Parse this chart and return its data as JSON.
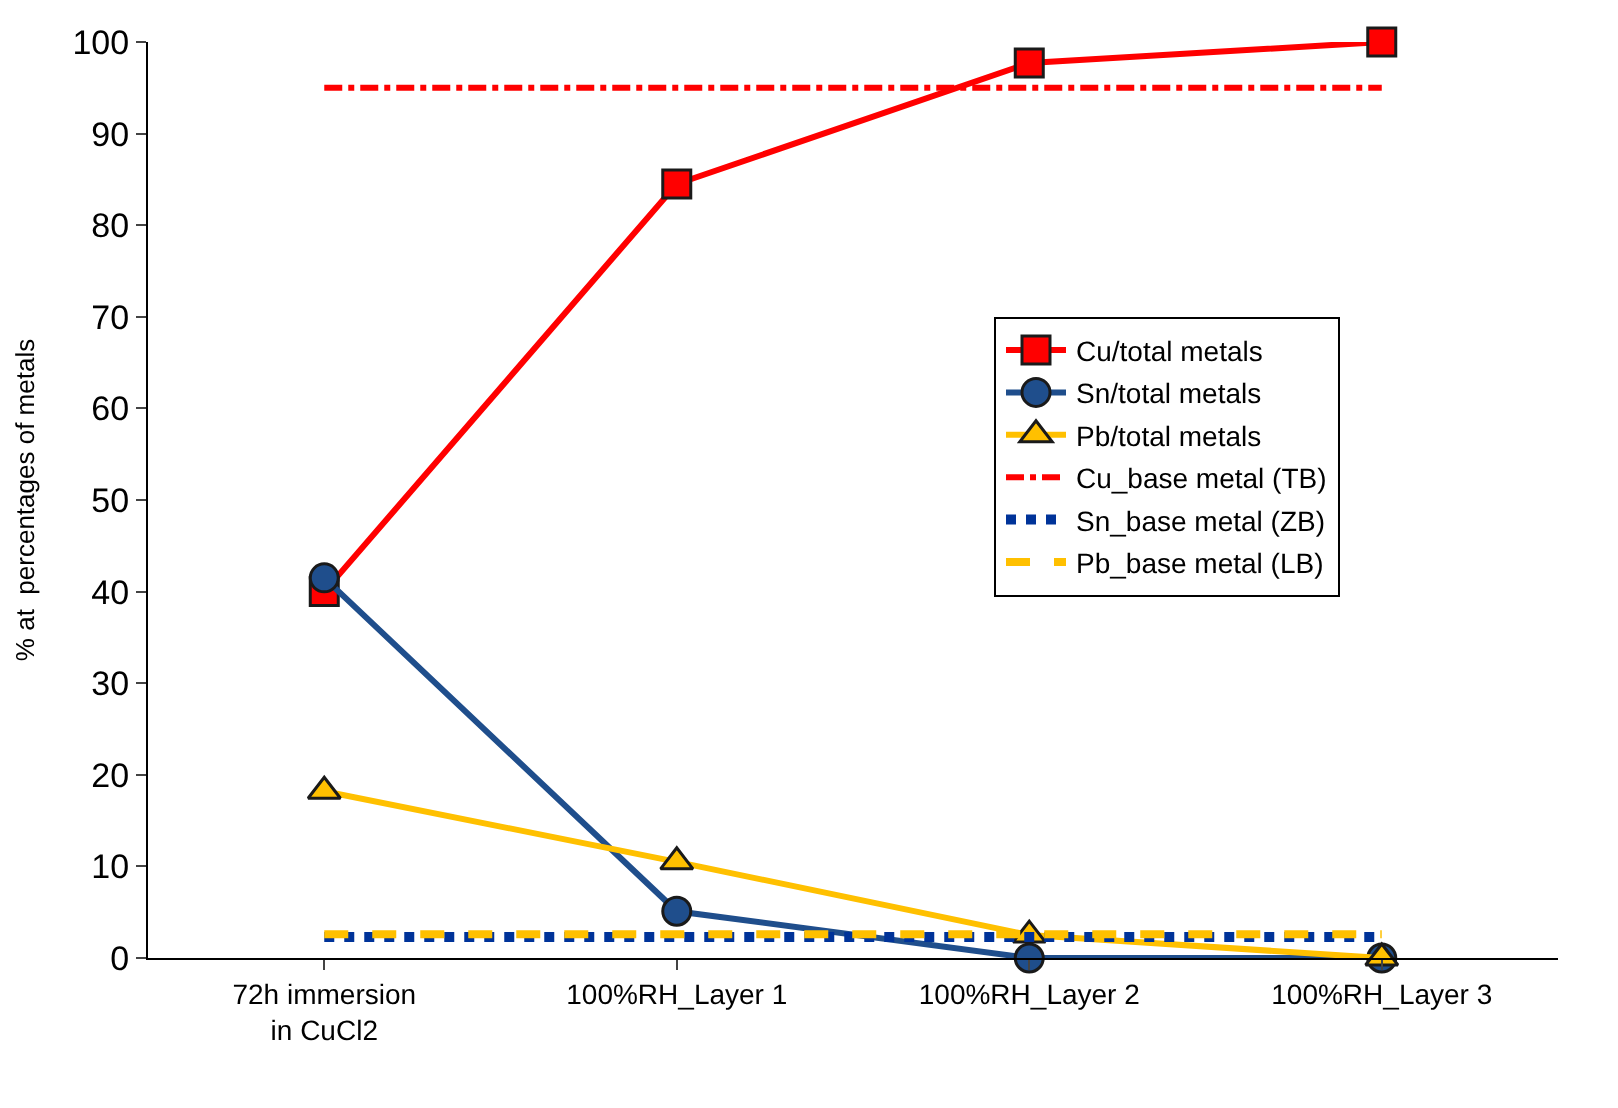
{
  "chart_data": {
    "type": "line",
    "ylabel": "% at  percentages of metals",
    "categories": [
      "72h immersion in CuCl2",
      "100%RH_Layer 1",
      "100%RH_Layer 2",
      "100%RH_Layer 3"
    ],
    "series": [
      {
        "name": "Cu/total metals",
        "color": "#ff0000",
        "values": [
          40,
          84.5,
          97.7,
          100
        ],
        "marker": "square",
        "line_style": "solid"
      },
      {
        "name": "Sn/total metals",
        "color": "#1f4e8c",
        "values": [
          41.5,
          5.1,
          0,
          0
        ],
        "marker": "circle",
        "line_style": "solid"
      },
      {
        "name": "Pb/total metals",
        "color": "#ffc000",
        "values": [
          18.2,
          10.5,
          2.5,
          0
        ],
        "marker": "triangle",
        "line_style": "solid"
      },
      {
        "name": "Cu_base metal (TB)",
        "color": "#ff0000",
        "values": [
          95,
          95,
          95,
          95
        ],
        "marker": "none",
        "line_style": "dashdot"
      },
      {
        "name": "Sn_base metal (ZB)",
        "color": "#003399",
        "values": [
          2.3,
          2.3,
          2.3,
          2.3
        ],
        "marker": "none",
        "line_style": "dotted"
      },
      {
        "name": "Pb_base metal (LB)",
        "color": "#ffc000",
        "values": [
          2.6,
          2.6,
          2.6,
          2.6
        ],
        "marker": "none",
        "line_style": "dashed"
      }
    ],
    "ylim": [
      0,
      100
    ],
    "yticks": [
      0,
      10,
      20,
      30,
      40,
      50,
      60,
      70,
      80,
      90,
      100
    ],
    "legend": "right"
  }
}
